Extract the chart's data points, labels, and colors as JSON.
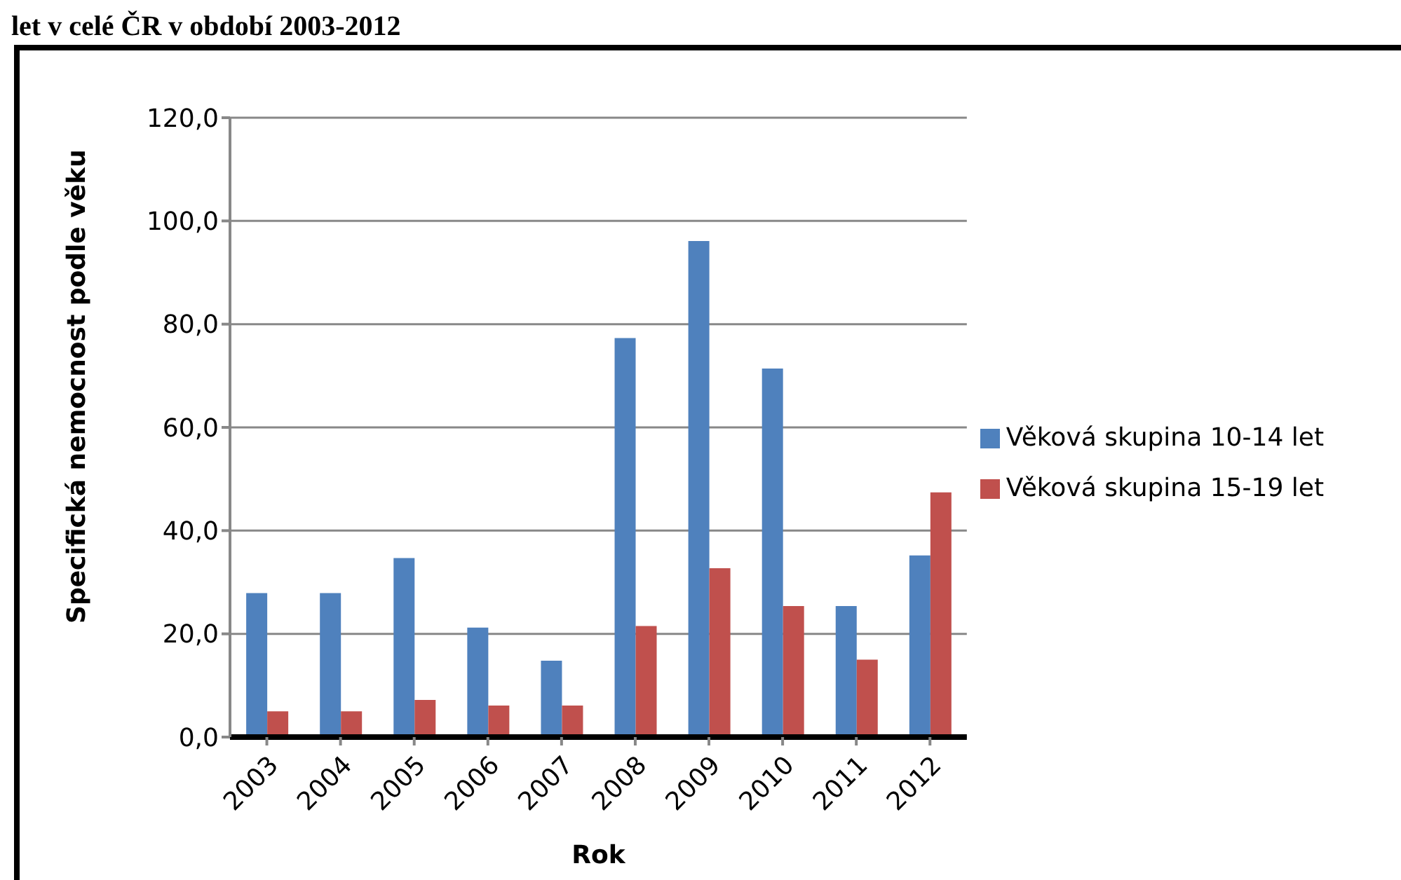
{
  "chart_data": {
    "type": "bar",
    "title": "let v celé ČR v období 2003-2012",
    "xlabel": "Rok",
    "ylabel": "Specifická nemocnost podle věku",
    "categories": [
      "2003",
      "2004",
      "2005",
      "2006",
      "2007",
      "2008",
      "2009",
      "2010",
      "2011",
      "2012"
    ],
    "series": [
      {
        "name": "Věková skupina 10-14 let",
        "color": "#4f81bd",
        "values": [
          27.9,
          27.9,
          34.7,
          21.2,
          14.8,
          77.3,
          96.1,
          71.4,
          25.4,
          35.2
        ]
      },
      {
        "name": "Věková skupina 15-19 let",
        "color": "#c0504d",
        "values": [
          5.0,
          5.0,
          7.2,
          6.1,
          6.1,
          21.5,
          32.7,
          25.4,
          15.0,
          47.4
        ]
      }
    ],
    "ylim": [
      0,
      120
    ],
    "yticks": [
      {
        "value": 0,
        "label": "0,0"
      },
      {
        "value": 20,
        "label": "20,0"
      },
      {
        "value": 40,
        "label": "40,0"
      },
      {
        "value": 60,
        "label": "60,0"
      },
      {
        "value": 80,
        "label": "80,0"
      },
      {
        "value": 100,
        "label": "100,0"
      },
      {
        "value": 120,
        "label": "120,0"
      }
    ],
    "grid": "y",
    "legend": "right"
  }
}
